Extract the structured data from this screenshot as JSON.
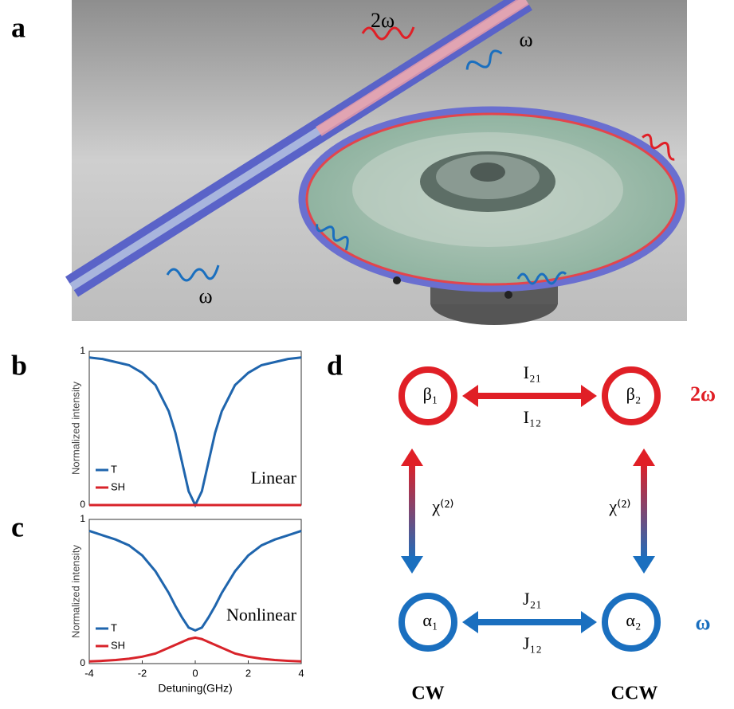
{
  "panel_labels": {
    "a": "a",
    "b": "b",
    "c": "c",
    "d": "d"
  },
  "panel_a": {
    "labels": [
      "2ω",
      "ω",
      "ω"
    ]
  },
  "chart_data": [
    {
      "type": "line",
      "x": [
        -4,
        -3.5,
        -3,
        -2.5,
        -2,
        -1.5,
        -1,
        -0.75,
        -0.5,
        -0.25,
        0,
        0.25,
        0.5,
        0.75,
        1,
        1.5,
        2,
        2.5,
        3,
        3.5,
        4
      ],
      "series": [
        {
          "name": "T",
          "color": "#1f65ad",
          "values": [
            0.96,
            0.95,
            0.93,
            0.91,
            0.86,
            0.78,
            0.61,
            0.47,
            0.28,
            0.09,
            0,
            0.09,
            0.28,
            0.47,
            0.61,
            0.78,
            0.86,
            0.91,
            0.93,
            0.95,
            0.96
          ]
        },
        {
          "name": "SH",
          "color": "#d8232a",
          "values": [
            0,
            0,
            0,
            0,
            0,
            0,
            0,
            0,
            0,
            0,
            0,
            0,
            0,
            0,
            0,
            0,
            0,
            0,
            0,
            0,
            0
          ]
        }
      ],
      "xlim": [
        -4,
        4
      ],
      "ylim": [
        0,
        1
      ],
      "yticks": [
        0,
        1
      ],
      "y_label": "Normalized intensity",
      "annotation": "Linear",
      "legend": "lower-left"
    },
    {
      "type": "line",
      "x": [
        -4,
        -3.5,
        -3,
        -2.5,
        -2,
        -1.5,
        -1,
        -0.75,
        -0.5,
        -0.25,
        0,
        0.25,
        0.5,
        0.75,
        1,
        1.5,
        2,
        2.5,
        3,
        3.5,
        4
      ],
      "series": [
        {
          "name": "T",
          "color": "#1f65ad",
          "values": [
            0.92,
            0.89,
            0.86,
            0.82,
            0.75,
            0.64,
            0.49,
            0.4,
            0.32,
            0.25,
            0.23,
            0.25,
            0.32,
            0.4,
            0.49,
            0.64,
            0.75,
            0.82,
            0.86,
            0.89,
            0.92
          ]
        },
        {
          "name": "SH",
          "color": "#d8232a",
          "values": [
            0.015,
            0.019,
            0.025,
            0.034,
            0.048,
            0.07,
            0.11,
            0.13,
            0.15,
            0.17,
            0.18,
            0.17,
            0.15,
            0.13,
            0.11,
            0.07,
            0.048,
            0.034,
            0.025,
            0.019,
            0.015
          ]
        }
      ],
      "xlim": [
        -4,
        4
      ],
      "ylim": [
        0,
        1
      ],
      "xticks": [
        -4,
        -2,
        0,
        2,
        4
      ],
      "yticks": [
        0,
        1
      ],
      "x_label": "Detuning(GHz)",
      "y_label": "Normalized intensity",
      "annotation": "Nonlinear",
      "legend": "lower-left"
    }
  ],
  "diagram": {
    "nodes": [
      {
        "label": "β₁"
      },
      {
        "label": "β₂"
      },
      {
        "label": "α₁"
      },
      {
        "label": "α₂"
      }
    ],
    "edges": [
      {
        "upper": "I₂₁",
        "lower": "I₁₂"
      },
      {
        "upper": "J₂₁",
        "lower": "J₁₂"
      },
      {
        "label": "χ⁽²⁾"
      },
      {
        "label": "χ⁽²⁾"
      }
    ],
    "row_labels": [
      "2ω",
      "ω"
    ],
    "column_labels": [
      "CW",
      "CCW"
    ]
  }
}
